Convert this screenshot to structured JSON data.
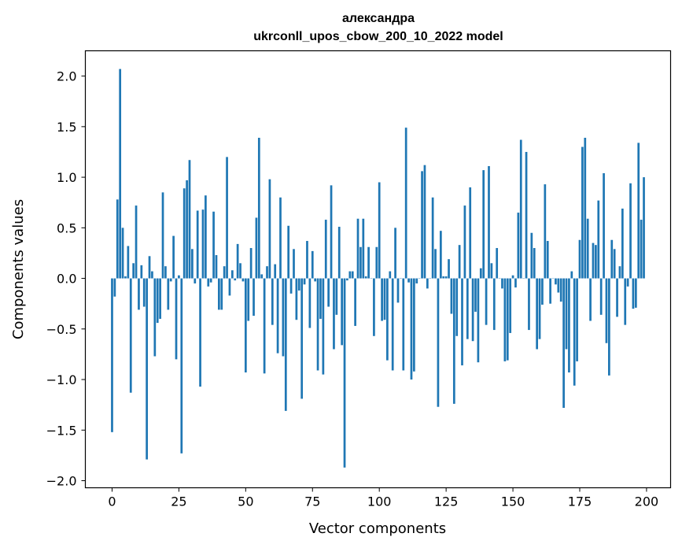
{
  "chart_data": {
    "type": "bar",
    "title_line1": "александра",
    "title_line2": "ukrconll_upos_cbow_200_10_2022 model",
    "xlabel": "Vector components",
    "ylabel": "Components values",
    "xlim": [
      -10,
      209
    ],
    "ylim": [
      -2.07,
      2.25
    ],
    "xticks": [
      0,
      25,
      50,
      75,
      100,
      125,
      150,
      175,
      200
    ],
    "yticks": [
      -2.0,
      -1.5,
      -1.0,
      -0.5,
      0.0,
      0.5,
      1.0,
      1.5,
      2.0
    ],
    "xtick_labels": [
      "0",
      "25",
      "50",
      "75",
      "100",
      "125",
      "150",
      "175",
      "200"
    ],
    "ytick_labels": [
      "−2.0",
      "−1.5",
      "−1.0",
      "−0.5",
      "0.0",
      "0.5",
      "1.0",
      "1.5",
      "2.0"
    ],
    "bar_color": "#1f77b4",
    "values": [
      -1.52,
      -0.18,
      0.78,
      2.07,
      0.5,
      0.02,
      0.32,
      -1.13,
      0.15,
      0.72,
      -0.31,
      0.13,
      -0.28,
      -1.79,
      0.22,
      0.07,
      -0.77,
      -0.44,
      -0.4,
      0.85,
      0.12,
      -0.31,
      -0.03,
      0.42,
      -0.8,
      0.03,
      -1.73,
      0.89,
      0.97,
      1.17,
      0.29,
      -0.05,
      0.67,
      -1.07,
      0.68,
      0.82,
      -0.08,
      -0.04,
      0.66,
      0.23,
      -0.31,
      -0.31,
      0.12,
      1.2,
      -0.17,
      0.08,
      -0.02,
      0.34,
      0.15,
      -0.03,
      -0.93,
      -0.42,
      0.3,
      -0.37,
      0.6,
      1.39,
      0.04,
      -0.94,
      0.12,
      0.98,
      -0.46,
      0.14,
      -0.74,
      0.8,
      -0.77,
      -1.31,
      0.52,
      -0.15,
      0.29,
      -0.41,
      -0.12,
      -1.19,
      -0.06,
      0.37,
      -0.49,
      0.27,
      -0.03,
      -0.91,
      -0.4,
      -0.95,
      0.58,
      -0.28,
      0.92,
      -0.7,
      -0.36,
      0.51,
      -0.66,
      -1.87,
      -0.02,
      0.07,
      0.07,
      -0.47,
      0.59,
      0.31,
      0.59,
      0.02,
      0.31,
      0.0,
      -0.57,
      0.31,
      0.95,
      -0.42,
      -0.41,
      -0.81,
      0.07,
      -0.91,
      0.5,
      -0.24,
      0.0,
      -0.91,
      1.49,
      -0.04,
      -1.0,
      -0.92,
      -0.05,
      0.0,
      1.06,
      1.12,
      -0.1,
      0.0,
      0.8,
      0.29,
      -1.27,
      0.47,
      0.02,
      0.02,
      0.19,
      -0.35,
      -1.24,
      -0.57,
      0.33,
      -0.86,
      0.72,
      -0.6,
      0.9,
      -0.62,
      -0.33,
      -0.83,
      0.1,
      1.07,
      -0.46,
      1.11,
      0.15,
      -0.51,
      0.3,
      0.0,
      -0.1,
      -0.82,
      -0.81,
      -0.54,
      0.03,
      -0.09,
      0.65,
      1.37,
      0.0,
      1.25,
      -0.51,
      0.45,
      0.3,
      -0.7,
      -0.6,
      -0.26,
      0.93,
      0.37,
      -0.25,
      0.0,
      -0.06,
      -0.14,
      -0.23,
      -1.28,
      -0.7,
      -0.93,
      0.07,
      -1.06,
      -0.82,
      0.38,
      1.3,
      1.39,
      0.59,
      -0.42,
      0.35,
      0.33,
      0.77,
      -0.36,
      1.04,
      -0.64,
      -0.96,
      0.38,
      0.29,
      -0.38,
      0.12,
      0.69,
      -0.46,
      -0.08,
      0.94,
      -0.3,
      -0.29,
      1.34,
      0.58,
      1.0
    ]
  }
}
